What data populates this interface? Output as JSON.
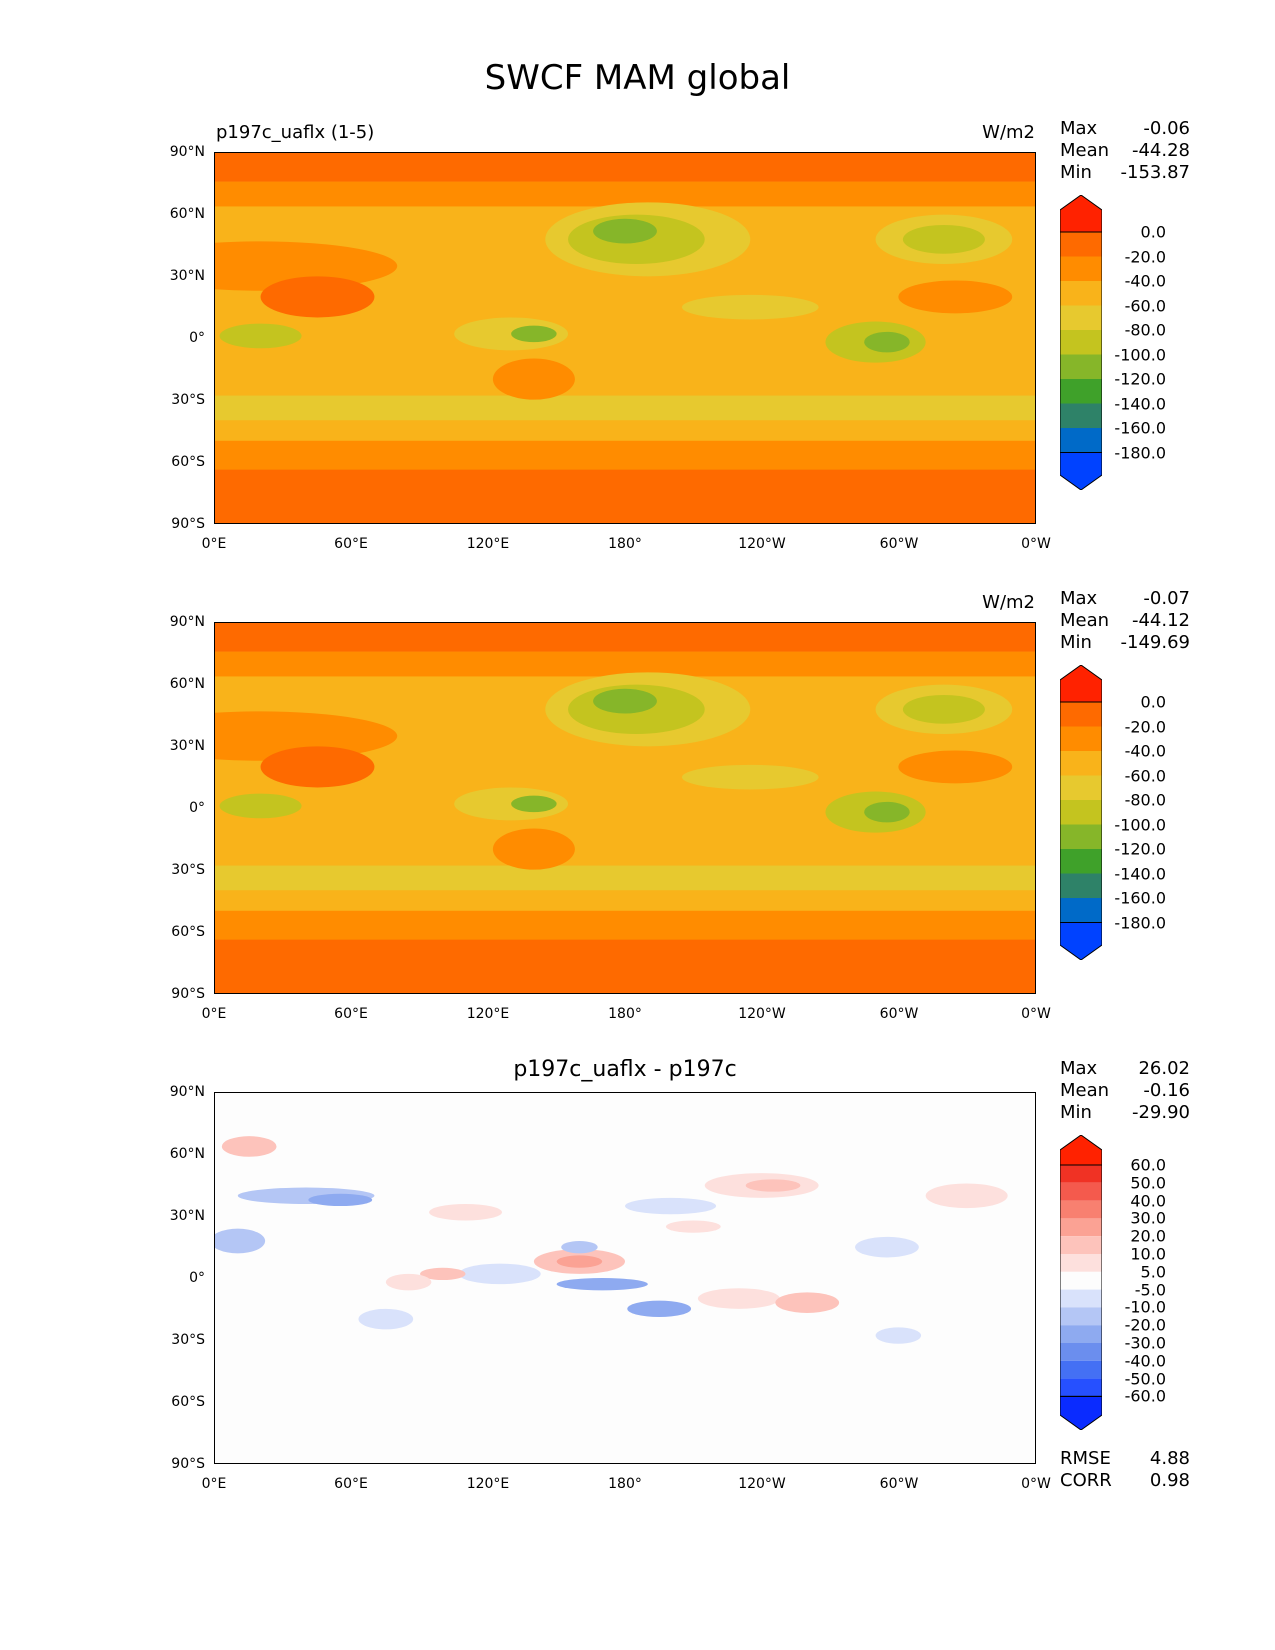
{
  "title": "SWCF MAM global",
  "colors": {
    "test_scale": [
      "#0042ff",
      "#006ac8",
      "#2e8268",
      "#3fa12a",
      "#86b629",
      "#c4c41f",
      "#e7c92f",
      "#f9b31a",
      "#ff8c00",
      "#fe6a00",
      "#ff2200"
    ],
    "diff_scale": [
      "#0a2bff",
      "#2650ff",
      "#4470f4",
      "#6b8eee",
      "#8eaaf0",
      "#b4c6f5",
      "#d9e2fb",
      "#fdfdfd",
      "#fde0dd",
      "#fdc3bb",
      "#fba294",
      "#f88070",
      "#f45a4d",
      "#f03224",
      "#ff2200"
    ]
  },
  "xticks": [
    "0°E",
    "60°E",
    "120°E",
    "180°",
    "120°W",
    "60°W",
    "0°W"
  ],
  "yticks": [
    "90°N",
    "60°N",
    "30°N",
    "0°",
    "30°S",
    "60°S",
    "90°S"
  ],
  "panels": [
    {
      "left_title": "p197c_uaflx (1-5)",
      "center_title": "",
      "right_title": "W/m2",
      "stats": {
        "max_label": "Max",
        "max": "-0.06",
        "mean_label": "Mean",
        "mean": "-44.28",
        "min_label": "Min",
        "min": "-153.87"
      },
      "colorbar_labels": [
        "0.0",
        "-20.0",
        "-40.0",
        "-60.0",
        "-80.0",
        "-100.0",
        "-120.0",
        "-140.0",
        "-160.0",
        "-180.0"
      ]
    },
    {
      "left_title": "",
      "center_title": "",
      "right_title": "W/m2",
      "stats": {
        "max_label": "Max",
        "max": "-0.07",
        "mean_label": "Mean",
        "mean": "-44.12",
        "min_label": "Min",
        "min": "-149.69"
      },
      "colorbar_labels": [
        "0.0",
        "-20.0",
        "-40.0",
        "-60.0",
        "-80.0",
        "-100.0",
        "-120.0",
        "-140.0",
        "-160.0",
        "-180.0"
      ]
    },
    {
      "left_title": "",
      "center_title": "p197c_uaflx - p197c",
      "right_title": "",
      "stats": {
        "max_label": "Max",
        "max": "26.02",
        "mean_label": "Mean",
        "mean": "-0.16",
        "min_label": "Min",
        "min": "-29.90"
      },
      "colorbar_labels": [
        "60.0",
        "50.0",
        "40.0",
        "30.0",
        "20.0",
        "10.0",
        "5.0",
        "-5.0",
        "-10.0",
        "-20.0",
        "-30.0",
        "-40.0",
        "-50.0",
        "-60.0"
      ],
      "metrics": {
        "rmse_label": "RMSE",
        "rmse": "4.88",
        "corr_label": "CORR",
        "corr": "0.98"
      }
    }
  ]
}
